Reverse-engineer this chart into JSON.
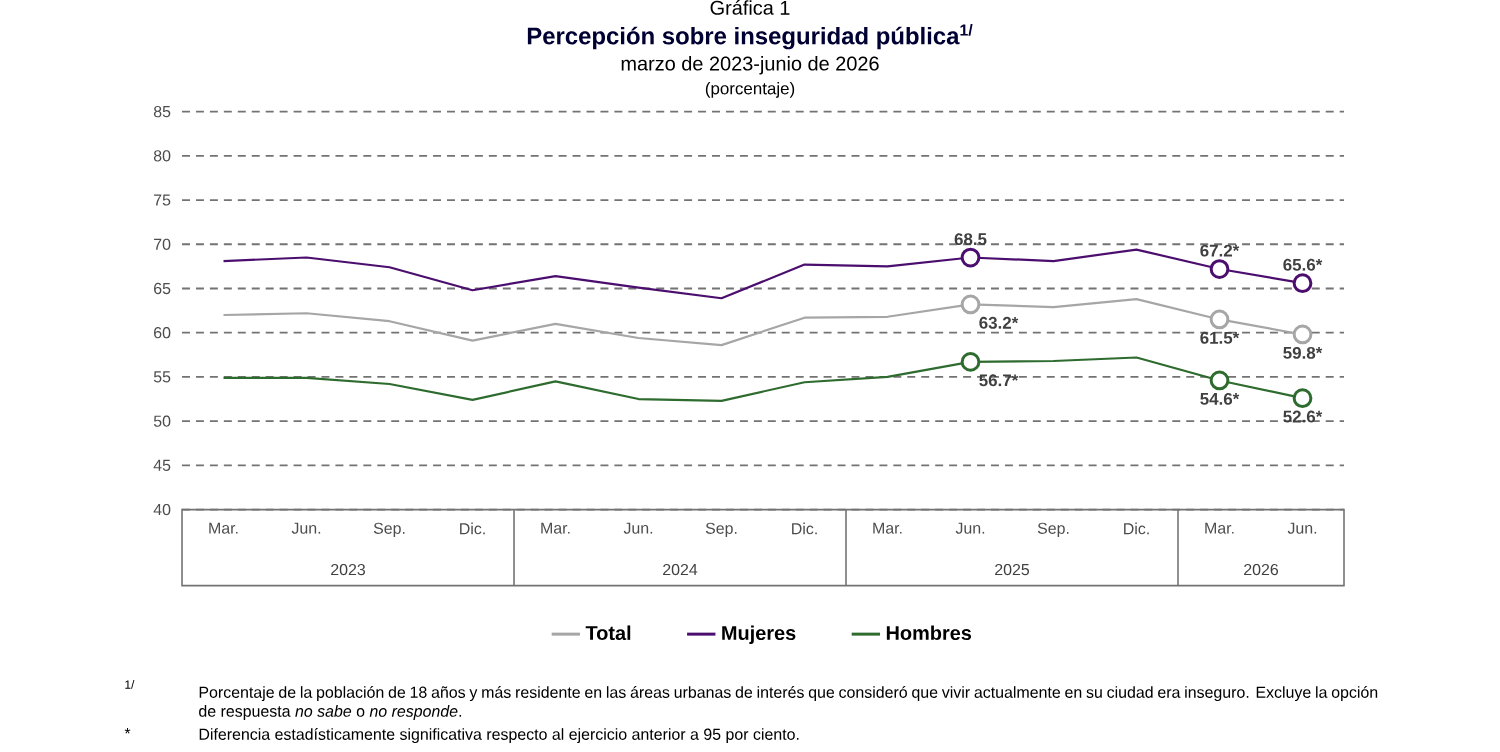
{
  "chart_data": {
    "type": "line",
    "title": "Percepción sobre inseguridad pública$^{1/}$",
    "subtitle": "marzo de 2023-junio de 2026",
    "categories": [
      "Mar.",
      "Jun.",
      "Sep.",
      "Dic.",
      "Mar.",
      "Jun.",
      "Sep.",
      "Dic.",
      "Mar.",
      "Jun.",
      "Sep.",
      "Dic.",
      "Mar.",
      "Jun."
    ],
    "series": [
      {
        "name": "Total",
        "color": "#a6a6a6",
        "values": [
          62.0,
          62.2,
          61.3,
          59.1,
          61.0,
          59.4,
          58.6,
          61.7,
          61.8,
          63.2,
          62.9,
          63.8,
          61.5,
          59.8
        ],
        "value_labels": [
          null,
          null,
          null,
          null,
          null,
          null,
          null,
          null,
          null,
          "63.2*",
          null,
          null,
          "61.5*",
          "59.8*"
        ]
      },
      {
        "name": "Mujeres",
        "color": "#4b0e6e",
        "values": [
          68.1,
          68.5,
          67.4,
          64.8,
          66.4,
          65.1,
          63.9,
          67.7,
          67.5,
          68.5,
          68.1,
          69.4,
          67.2,
          65.6
        ],
        "value_labels": [
          null,
          null,
          null,
          null,
          null,
          null,
          null,
          null,
          null,
          "68.5",
          null,
          null,
          "67.2*",
          "65.6*"
        ]
      },
      {
        "name": "Hombres",
        "color": "#2e6b2e",
        "values": [
          54.9,
          54.9,
          54.2,
          52.4,
          54.5,
          52.5,
          52.3,
          54.4,
          55.0,
          56.7,
          56.8,
          57.2,
          54.6,
          52.6
        ],
        "value_labels": [
          null,
          null,
          null,
          null,
          null,
          null,
          null,
          null,
          null,
          "56.7*",
          null,
          null,
          "54.6*",
          "52.6*"
        ]
      }
    ],
    "ylim": [
      40,
      85
    ],
    "yticks": [
      40,
      45,
      50,
      55,
      60,
      65,
      70,
      75,
      80,
      85
    ],
    "grid": "y",
    "line_style": "solid",
    "legend": "bottom",
    "annotations": [
      "2023",
      "2024",
      "2025",
      "2026",
      "Gráfica 1",
      "1/",
      "Porcentaje de la población de 18 años y más residente en las áreas urbanas de interés que consideró que vivir actualmente en su ciudad era inseguro. Excluye la opción de respuesta *no sabe* o *no responde*.",
      "*",
      "Diferencia estadísticamente significativa respecto al ejercicio anterior a 95 por ciento.",
      "(porcentaje)"
    ]
  }
}
